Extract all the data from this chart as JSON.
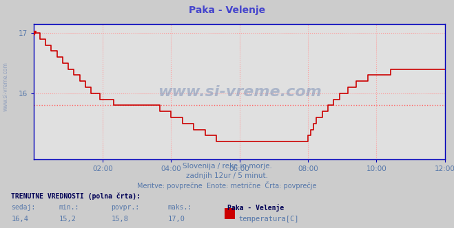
{
  "title": "Paka - Velenje",
  "title_color": "#4444cc",
  "bg_color": "#cccccc",
  "plot_bg_color": "#e0e0e0",
  "line_color": "#cc0000",
  "axis_color": "#0000bb",
  "grid_color": "#ff9999",
  "avg_line_color": "#ff6666",
  "avg_value": 15.8,
  "y_min": 14.9,
  "y_max": 17.15,
  "y_ticks": [
    16,
    17
  ],
  "x_ticks_labels": [
    "02:00",
    "04:00",
    "06:00",
    "08:00",
    "10:00",
    "12:00"
  ],
  "x_ticks_pos": [
    24,
    48,
    72,
    96,
    120,
    144
  ],
  "total_points": 145,
  "subtitle1": "Slovenija / reke in morje.",
  "subtitle2": "zadnjih 12ur / 5 minut.",
  "subtitle3": "Meritve: povprečne  Enote: metrične  Črta: povprečje",
  "label_current": "TRENUTNE VREDNOSTI (polna črta):",
  "label_sedaj": "sedaj:",
  "label_min": "min.:",
  "label_povpr": "povpr.:",
  "label_maks": "maks.:",
  "val_sedaj": "16,4",
  "val_min": "15,2",
  "val_povpr": "15,8",
  "val_maks": "17,0",
  "station_name": "Paka - Velenje",
  "sensor_label": "temperatura[C]",
  "watermark_color": "#8899bb",
  "subtitle_color": "#5577aa",
  "text_color": "#000055",
  "temperature_data": [
    17.0,
    17.0,
    16.9,
    16.9,
    16.8,
    16.8,
    16.7,
    16.7,
    16.6,
    16.6,
    16.5,
    16.5,
    16.4,
    16.4,
    16.3,
    16.3,
    16.2,
    16.2,
    16.1,
    16.1,
    16.0,
    16.0,
    16.0,
    15.9,
    15.9,
    15.9,
    15.9,
    15.9,
    15.8,
    15.8,
    15.8,
    15.8,
    15.8,
    15.8,
    15.8,
    15.8,
    15.8,
    15.8,
    15.8,
    15.8,
    15.8,
    15.8,
    15.8,
    15.8,
    15.7,
    15.7,
    15.7,
    15.7,
    15.6,
    15.6,
    15.6,
    15.6,
    15.5,
    15.5,
    15.5,
    15.5,
    15.4,
    15.4,
    15.4,
    15.4,
    15.3,
    15.3,
    15.3,
    15.3,
    15.2,
    15.2,
    15.2,
    15.2,
    15.2,
    15.2,
    15.2,
    15.2,
    15.2,
    15.2,
    15.2,
    15.2,
    15.2,
    15.2,
    15.2,
    15.2,
    15.2,
    15.2,
    15.2,
    15.2,
    15.2,
    15.2,
    15.2,
    15.2,
    15.2,
    15.2,
    15.2,
    15.2,
    15.2,
    15.2,
    15.2,
    15.2,
    15.3,
    15.4,
    15.5,
    15.6,
    15.6,
    15.7,
    15.7,
    15.8,
    15.8,
    15.9,
    15.9,
    16.0,
    16.0,
    16.0,
    16.1,
    16.1,
    16.1,
    16.2,
    16.2,
    16.2,
    16.2,
    16.3,
    16.3,
    16.3,
    16.3,
    16.3,
    16.3,
    16.3,
    16.3,
    16.4,
    16.4,
    16.4,
    16.4,
    16.4,
    16.4,
    16.4,
    16.4,
    16.4,
    16.4,
    16.4,
    16.4,
    16.4,
    16.4,
    16.4,
    16.4,
    16.4,
    16.4,
    16.4,
    16.4
  ]
}
